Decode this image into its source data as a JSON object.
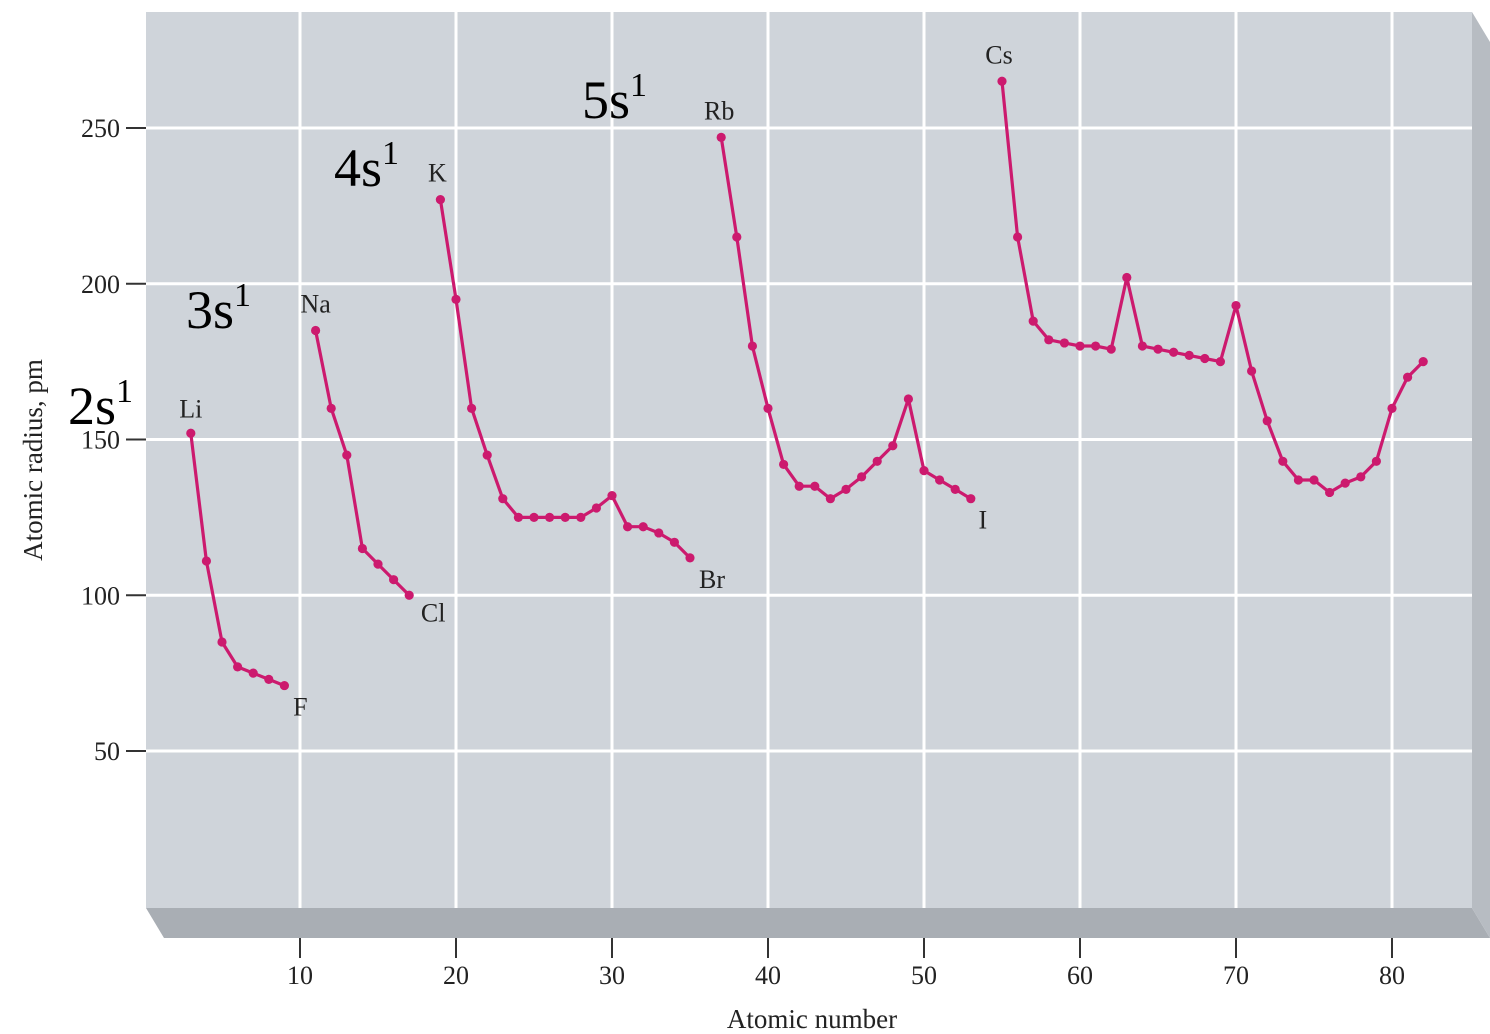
{
  "chart_data": {
    "type": "line",
    "title": "",
    "xlabel": "Atomic number",
    "ylabel": "Atomic radius, pm",
    "xlim": [
      0,
      86
    ],
    "ylim": [
      0,
      280
    ],
    "xticks": [
      10,
      20,
      30,
      40,
      50,
      60,
      70,
      80
    ],
    "yticks": [
      50,
      100,
      150,
      200,
      250
    ],
    "grid": true,
    "line_color": "#cc1a6e",
    "plot_background": "#cfd4da",
    "segments": [
      {
        "x": [
          3,
          4,
          5,
          6,
          7,
          8,
          9
        ],
        "y": [
          152,
          111,
          85,
          77,
          75,
          73,
          71
        ]
      },
      {
        "x": [
          11,
          12,
          13,
          14,
          15,
          16,
          17
        ],
        "y": [
          185,
          160,
          145,
          115,
          110,
          105,
          100
        ]
      },
      {
        "x": [
          19,
          20,
          21,
          22,
          23,
          24,
          25,
          26,
          27,
          28,
          29,
          30,
          31,
          32,
          33,
          34,
          35
        ],
        "y": [
          227,
          195,
          160,
          145,
          131,
          125,
          125,
          125,
          125,
          125,
          128,
          132,
          122,
          122,
          120,
          117,
          112
        ]
      },
      {
        "x": [
          37,
          38,
          39,
          40,
          41,
          42,
          43,
          44,
          45,
          46,
          47,
          48,
          49,
          50,
          51,
          52,
          53
        ],
        "y": [
          247,
          215,
          180,
          160,
          142,
          135,
          135,
          131,
          134,
          138,
          143,
          148,
          163,
          140,
          137,
          134,
          131
        ]
      },
      {
        "x": [
          55,
          56,
          57,
          58,
          59,
          60,
          61,
          62,
          63,
          64,
          65,
          66,
          67,
          68,
          69,
          70,
          71,
          72,
          73,
          74,
          75,
          76,
          77,
          78,
          79,
          80,
          81,
          82
        ],
        "y": [
          265,
          215,
          188,
          182,
          181,
          180,
          180,
          179,
          202,
          180,
          179,
          178,
          177,
          176,
          175,
          193,
          172,
          156,
          143,
          137,
          137,
          133,
          136,
          138,
          143,
          160,
          170,
          175
        ]
      }
    ],
    "element_labels": [
      {
        "text": "Li",
        "x": 3,
        "y": 152
      },
      {
        "text": "F",
        "x": 9,
        "y": 71
      },
      {
        "text": "Na",
        "x": 11,
        "y": 185
      },
      {
        "text": "Cl",
        "x": 17,
        "y": 100
      },
      {
        "text": "K",
        "x": 19,
        "y": 227
      },
      {
        "text": "Br",
        "x": 35,
        "y": 112
      },
      {
        "text": "Rb",
        "x": 37,
        "y": 247
      },
      {
        "text": "I",
        "x": 53,
        "y": 131
      },
      {
        "text": "Cs",
        "x": 55,
        "y": 265
      }
    ],
    "annotations": [
      {
        "base": "2s",
        "sup": "1"
      },
      {
        "base": "3s",
        "sup": "1"
      },
      {
        "base": "4s",
        "sup": "1"
      },
      {
        "base": "5s",
        "sup": "1"
      }
    ]
  }
}
